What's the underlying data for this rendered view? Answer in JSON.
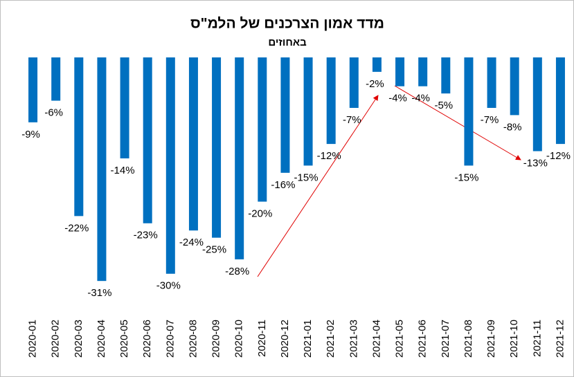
{
  "chart_data": {
    "type": "bar",
    "title": "מדד אמון הצרכנים של הלמ\"ס",
    "subtitle": "באחוזים",
    "categories": [
      "2020-01",
      "2020-02",
      "2020-03",
      "2020-04",
      "2020-05",
      "2020-06",
      "2020-07",
      "2020-08",
      "2020-09",
      "2020-10",
      "2020-11",
      "2020-12",
      "2021-01",
      "2021-02",
      "2021-03",
      "2021-04",
      "2021-05",
      "2021-06",
      "2021-07",
      "2021-08",
      "2021-09",
      "2021-10",
      "2021-11",
      "2021-12"
    ],
    "values": [
      -9,
      -6,
      -22,
      -31,
      -14,
      -23,
      -30,
      -24,
      -25,
      -28,
      -20,
      -16,
      -15,
      -12,
      -7,
      -2,
      -4,
      -4,
      -5,
      -15,
      -7,
      -8,
      -13,
      -12
    ],
    "value_labels": [
      "-9%",
      "-6%",
      "-22%",
      "-31%",
      "-14%",
      "-23%",
      "-30%",
      "-24%",
      "-25%",
      "-28%",
      "-20%",
      "-16%",
      "-15%",
      "-12%",
      "-7%",
      "-2%",
      "-4%",
      "-4%",
      "-5%",
      "-15%",
      "-7%",
      "-8%",
      "-13%",
      "-12%"
    ],
    "color": "#0070c0",
    "ylim": [
      -40,
      0
    ]
  }
}
